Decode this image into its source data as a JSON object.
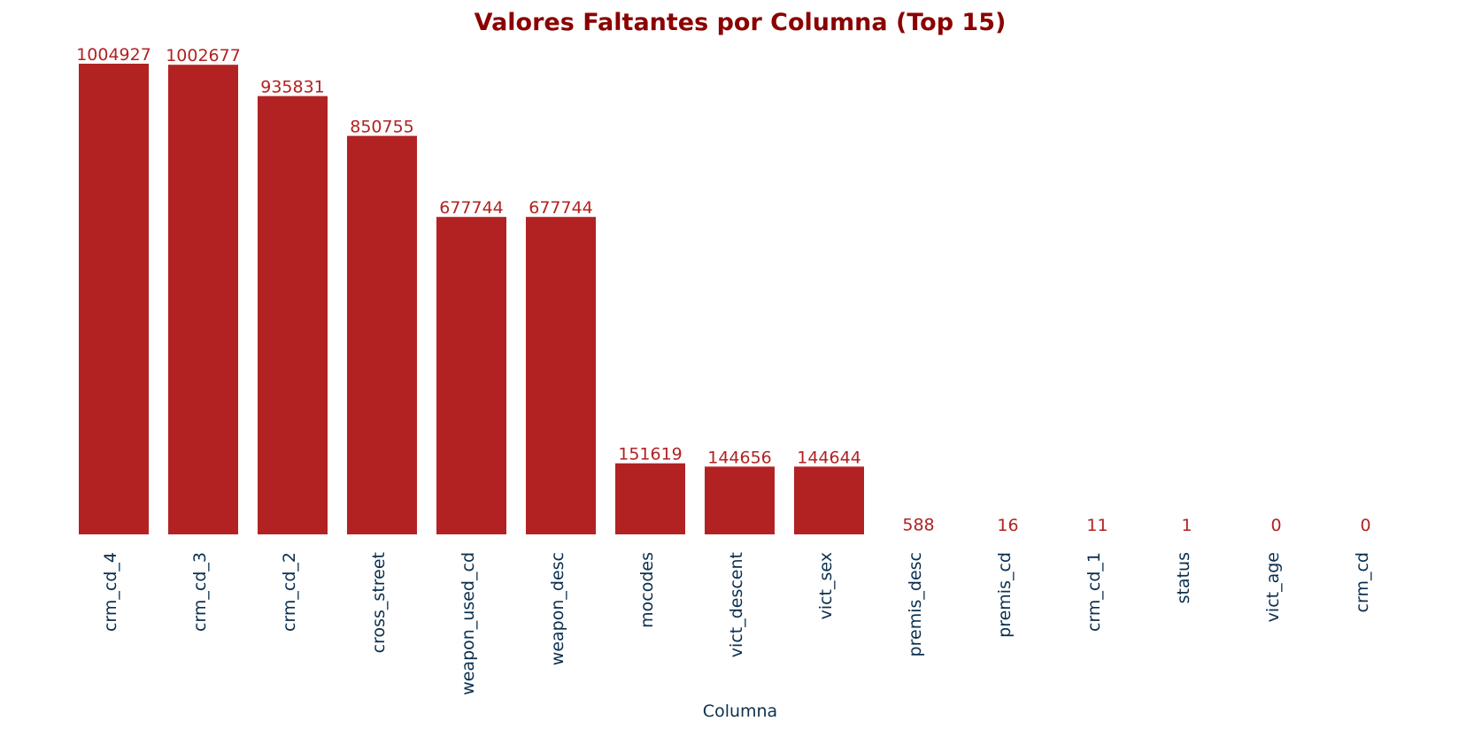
{
  "chart_data": {
    "type": "bar",
    "title": "Valores Faltantes por Columna (Top 15)",
    "xlabel": "Columna",
    "ylabel": "",
    "categories": [
      "crm_cd_4",
      "crm_cd_3",
      "crm_cd_2",
      "cross_street",
      "weapon_used_cd",
      "weapon_desc",
      "mocodes",
      "vict_descent",
      "vict_sex",
      "premis_desc",
      "premis_cd",
      "crm_cd_1",
      "status",
      "vict_age",
      "crm_cd"
    ],
    "values": [
      1004927,
      1002677,
      935831,
      850755,
      677744,
      677744,
      151619,
      144656,
      144644,
      588,
      16,
      11,
      1,
      0,
      0
    ],
    "ylim": [
      0,
      1004927
    ],
    "grid": false,
    "bar_color": "#b22222",
    "label_color": "#b22222",
    "title_color": "#8b0000",
    "axis_text_color": "#0b2f4f"
  }
}
